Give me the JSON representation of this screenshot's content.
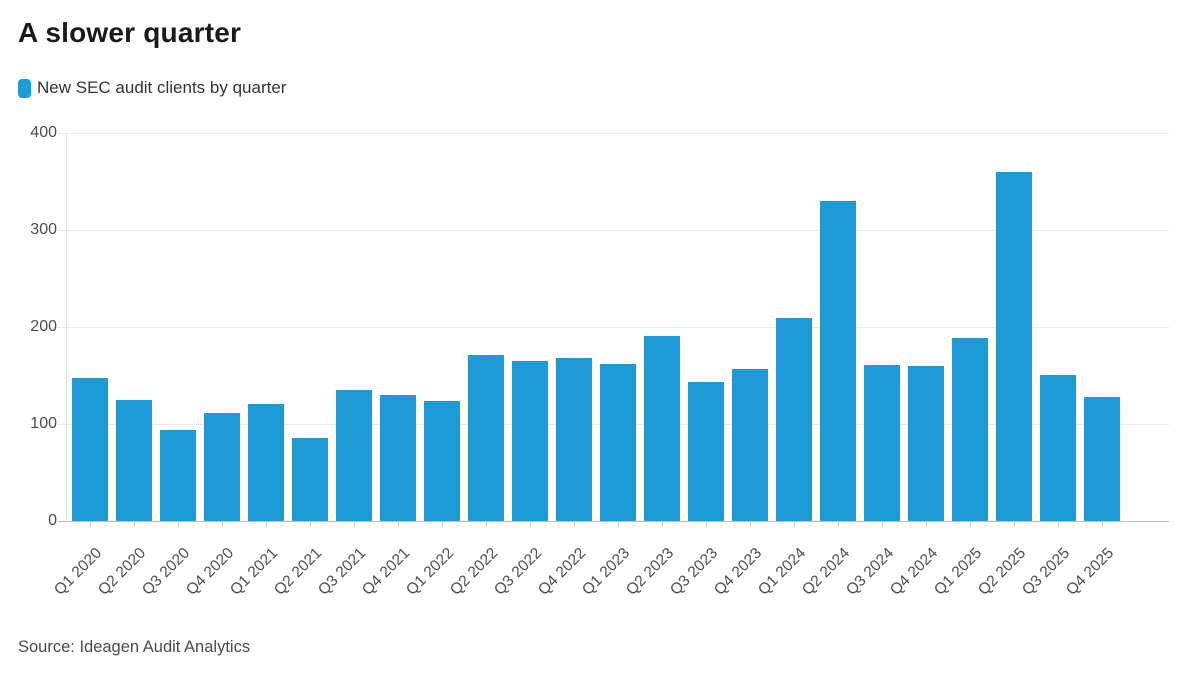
{
  "chart": {
    "title": "A slower quarter",
    "legend_label": "New SEC audit clients by quarter",
    "source": "Source: Ideagen Audit Analytics",
    "accent_color": "#1e9bd7"
  },
  "chart_data": {
    "type": "bar",
    "title": "A slower quarter",
    "series_name": "New SEC audit clients by quarter",
    "categories": [
      "Q1 2020",
      "Q2 2020",
      "Q3 2020",
      "Q4 2020",
      "Q1 2021",
      "Q2 2021",
      "Q3 2021",
      "Q4 2021",
      "Q1 2022",
      "Q2 2022",
      "Q3 2022",
      "Q4 2022",
      "Q1 2023",
      "Q2 2023",
      "Q3 2023",
      "Q4 2023",
      "Q1 2024",
      "Q2 2024",
      "Q3 2024",
      "Q4 2024",
      "Q1 2025",
      "Q2 2025",
      "Q3 2025",
      "Q4 2025"
    ],
    "values": [
      147,
      125,
      94,
      111,
      121,
      86,
      135,
      130,
      124,
      171,
      165,
      168,
      162,
      191,
      143,
      157,
      209,
      330,
      161,
      160,
      189,
      360,
      151,
      128
    ],
    "xlabel": "",
    "ylabel": "",
    "ylim": [
      0,
      400
    ],
    "yticks": [
      0,
      100,
      200,
      300,
      400
    ],
    "grid": "horizontal",
    "legend_position": "top-left",
    "bar_color": "#1e9bd7",
    "source": "Source: Ideagen Audit Analytics"
  }
}
